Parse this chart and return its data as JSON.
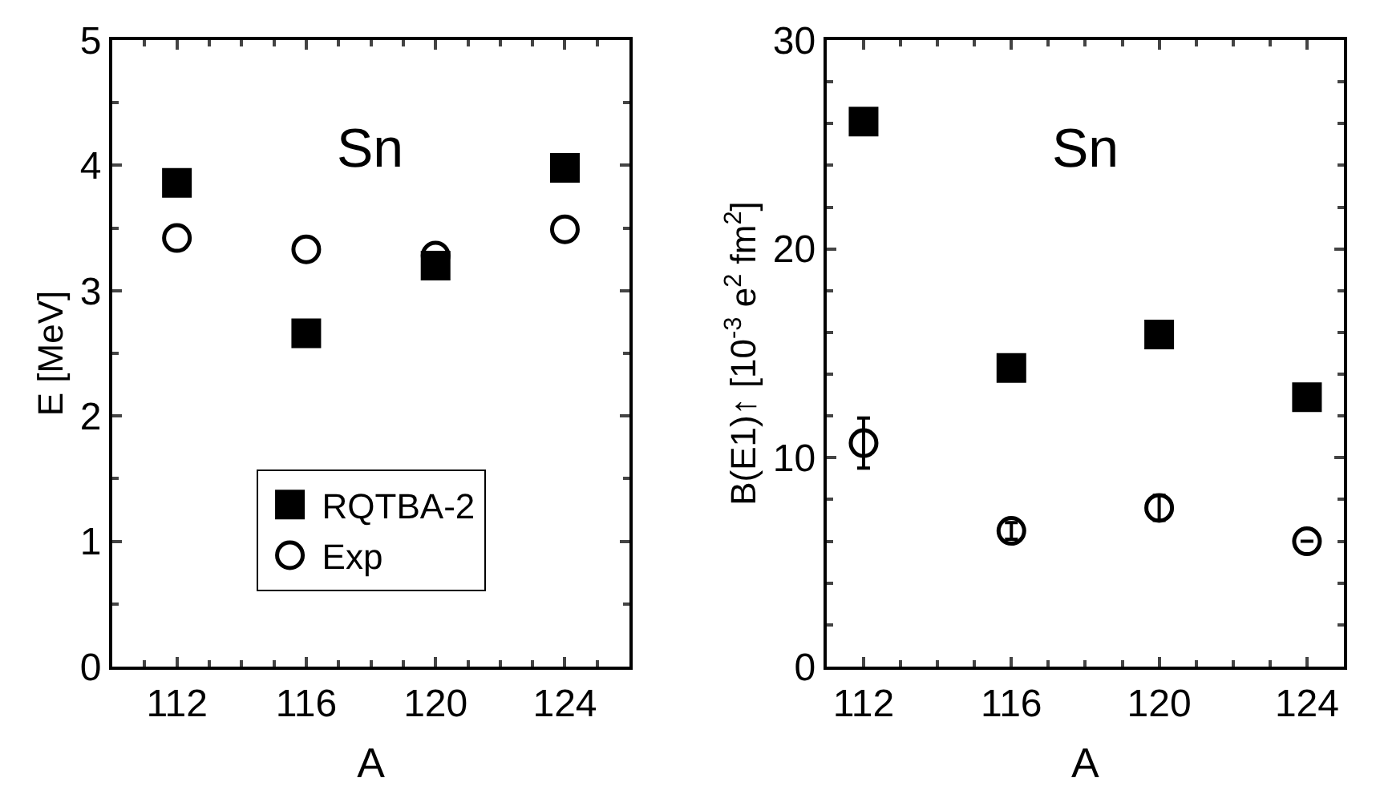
{
  "chart_data": [
    {
      "type": "scatter",
      "xlabel": "A",
      "ylabel": "E [MeV]",
      "annotations": [
        "Sn"
      ],
      "x": [
        112,
        116,
        120,
        124
      ],
      "xlim": [
        110,
        126
      ],
      "xticks": [
        112,
        116,
        120,
        124
      ],
      "ylim": [
        0,
        5
      ],
      "yticks": [
        0,
        1,
        2,
        3,
        4,
        5
      ],
      "legend": "bottom",
      "series": [
        {
          "name": "RQTBA-2",
          "color": "#000000",
          "marker": "square",
          "values": [
            3.86,
            2.66,
            3.2,
            3.98
          ]
        },
        {
          "name": "Exp",
          "color": "#000000",
          "marker": "circle",
          "values": [
            3.42,
            3.33,
            3.28,
            3.49
          ]
        }
      ]
    },
    {
      "type": "scatter",
      "xlabel": "A",
      "ylabel": "B(E1)↑ [10$^{-3}$ e$^{2}$ fm$^{2}$]",
      "annotations": [
        "Sn"
      ],
      "x": [
        112,
        116,
        120,
        124
      ],
      "xlim": [
        111,
        125
      ],
      "xticks": [
        112,
        116,
        120,
        124
      ],
      "ylim": [
        0,
        30
      ],
      "yticks": [
        0,
        10,
        20,
        30
      ],
      "legend": false,
      "series": [
        {
          "color": "#000000",
          "marker": "square",
          "values": [
            26.1,
            14.3,
            15.9,
            12.9
          ]
        },
        {
          "color": "#000000",
          "marker": "circle",
          "values": [
            10.7,
            6.5,
            7.6,
            6.0
          ],
          "errors": [
            1.2,
            0.4,
            0.6,
            null
          ]
        }
      ]
    }
  ]
}
